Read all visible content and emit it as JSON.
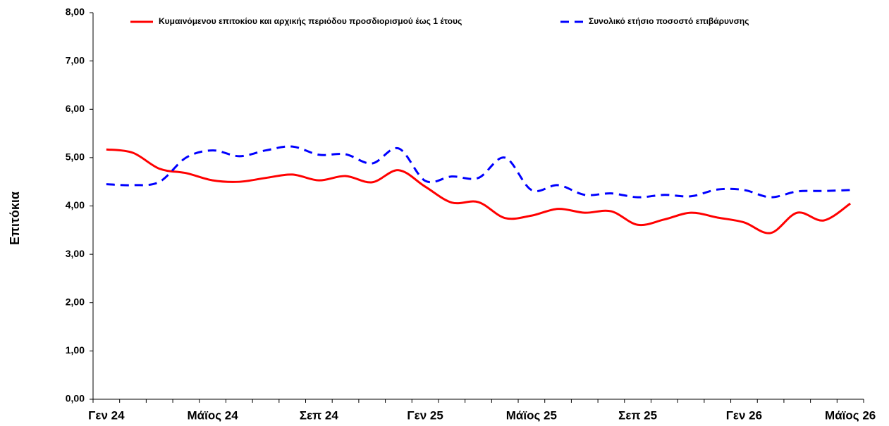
{
  "chart_data": {
    "type": "line",
    "y_label": "Επιτόκια",
    "categories": [
      "Γεν 24",
      null,
      null,
      null,
      "Μάϊος 24",
      null,
      null,
      null,
      "Σεπ 24",
      null,
      null,
      null,
      "Γεν 25",
      null,
      null,
      null,
      "Μάϊος 25",
      null,
      null,
      null,
      "Σεπ 25",
      null,
      null,
      null,
      "Γεν 26",
      null,
      null,
      null,
      "Μάϊος 26"
    ],
    "series": [
      {
        "name": "Κυμαινόμενου επιτοκίου και  αρχικής περιόδου προσδιορισμού έως 1 έτους",
        "color": "#ff0000",
        "style": "solid",
        "values": [
          5.17,
          5.1,
          4.77,
          4.68,
          4.53,
          4.5,
          4.58,
          4.65,
          4.53,
          4.62,
          4.49,
          4.74,
          4.4,
          4.07,
          4.08,
          3.75,
          3.8,
          3.94,
          3.86,
          3.89,
          3.61,
          3.72,
          3.86,
          3.76,
          3.66,
          3.44,
          3.86,
          3.7,
          4.05
        ]
      },
      {
        "name": "Συνολικό ετήσιο ποσοστό επιβάρυνσης",
        "color": "#0000ff",
        "style": "dashed",
        "values": [
          4.45,
          4.43,
          4.5,
          5.0,
          5.15,
          5.03,
          5.15,
          5.23,
          5.06,
          5.07,
          4.88,
          5.19,
          4.52,
          4.61,
          4.58,
          5.0,
          4.33,
          4.43,
          4.23,
          4.26,
          4.18,
          4.23,
          4.2,
          4.34,
          4.33,
          4.18,
          4.3,
          4.31,
          4.33
        ]
      }
    ],
    "ylim": [
      0,
      8
    ],
    "yticks": [
      {
        "value": 0,
        "label": "0,00"
      },
      {
        "value": 1,
        "label": "1,00"
      },
      {
        "value": 2,
        "label": "2,00"
      },
      {
        "value": 3,
        "label": "3,00"
      },
      {
        "value": 4,
        "label": "4,00"
      },
      {
        "value": 5,
        "label": "5,00"
      },
      {
        "value": 6,
        "label": "6,00"
      },
      {
        "value": 7,
        "label": "7,00"
      },
      {
        "value": 8,
        "label": "8,00"
      }
    ]
  }
}
